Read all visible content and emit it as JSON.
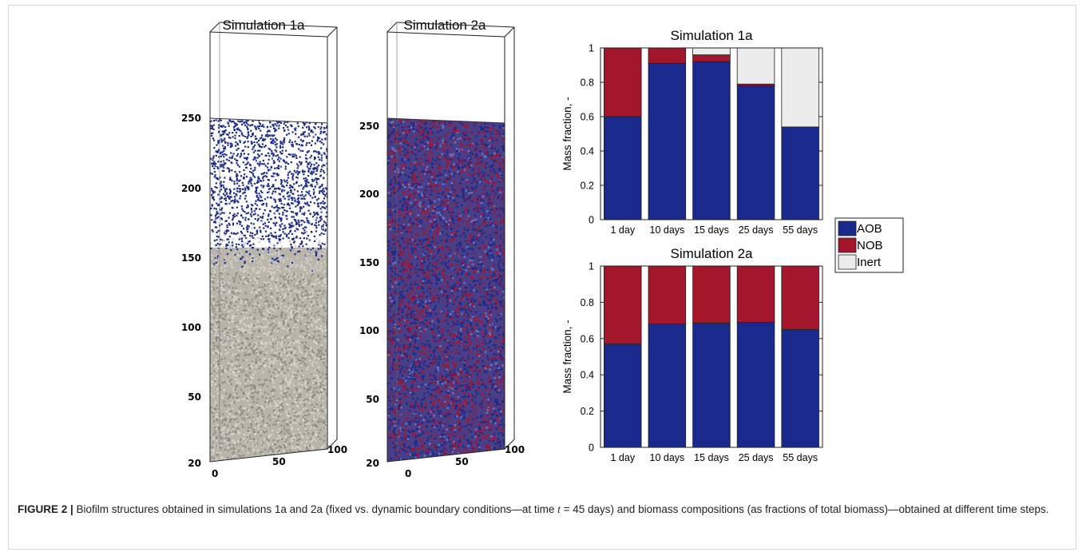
{
  "figure_number": "FIGURE 2 |",
  "caption": {
    "part1": " Biofilm structures obtained in simulations 1a and 2a (fixed vs. dynamic boundary conditions—at time ",
    "var": "t",
    "part2": " = 45 days) and biomass compositions (as fractions of total biomass)—obtained at different time steps."
  },
  "colors": {
    "AOB": "#1a2a8c",
    "NOB": "#a3162b",
    "Inert": "#ececec",
    "inert_particles": "#b8b4aa"
  },
  "structures": [
    {
      "title": "Simulation 1a",
      "z_ticks": [
        "250",
        "200",
        "150",
        "100",
        "50",
        "20"
      ],
      "x_ticks": [
        "0",
        "50",
        "100"
      ],
      "pattern": "layered"
    },
    {
      "title": "Simulation 2a",
      "z_ticks": [
        "250",
        "200",
        "150",
        "100",
        "50",
        "20"
      ],
      "x_ticks": [
        "0",
        "50",
        "100"
      ],
      "pattern": "mixed"
    }
  ],
  "chart_data": [
    {
      "type": "bar",
      "stacked": true,
      "title": "Simulation 1a",
      "xlabel": "",
      "ylabel": "Mass fraction, -",
      "ylim": [
        0,
        1
      ],
      "yticks": [
        "0",
        "0.2",
        "0.4",
        "0.6",
        "0.8",
        "1"
      ],
      "categories": [
        "1 day",
        "10 days",
        "15 days",
        "25 days",
        "55 days"
      ],
      "series": [
        {
          "name": "AOB",
          "values": [
            0.6,
            0.91,
            0.92,
            0.78,
            0.54
          ]
        },
        {
          "name": "NOB",
          "values": [
            0.4,
            0.09,
            0.04,
            0.01,
            0.0
          ]
        },
        {
          "name": "Inert",
          "values": [
            0.0,
            0.0,
            0.04,
            0.21,
            0.46
          ]
        }
      ],
      "grid": false
    },
    {
      "type": "bar",
      "stacked": true,
      "title": "Simulation 2a",
      "xlabel": "",
      "ylabel": "Mass fraction, -",
      "ylim": [
        0,
        1
      ],
      "yticks": [
        "0",
        "0.2",
        "0.4",
        "0.6",
        "0.8",
        "1"
      ],
      "categories": [
        "1 day",
        "10 days",
        "15 days",
        "25 days",
        "55 days"
      ],
      "series": [
        {
          "name": "AOB",
          "values": [
            0.57,
            0.68,
            0.685,
            0.69,
            0.65
          ]
        },
        {
          "name": "NOB",
          "values": [
            0.43,
            0.32,
            0.315,
            0.31,
            0.35
          ]
        },
        {
          "name": "Inert",
          "values": [
            0.0,
            0.0,
            0.0,
            0.0,
            0.0
          ]
        }
      ],
      "grid": false
    }
  ],
  "legend": {
    "placement": "between-charts-right",
    "items": [
      {
        "label": "AOB",
        "color_key": "AOB"
      },
      {
        "label": "NOB",
        "color_key": "NOB"
      },
      {
        "label": "Inert",
        "color_key": "Inert"
      }
    ]
  }
}
